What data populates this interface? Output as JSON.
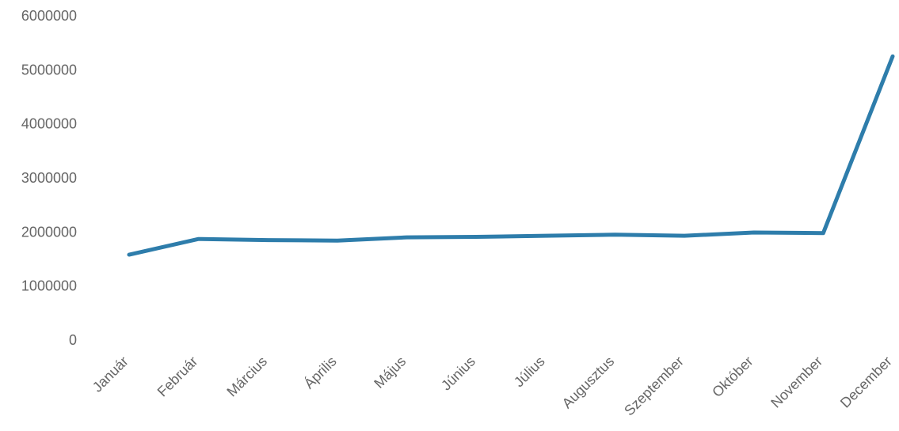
{
  "chart_data": {
    "type": "line",
    "title": "",
    "xlabel": "",
    "ylabel": "",
    "categories": [
      "Január",
      "Február",
      "Március",
      "Április",
      "Május",
      "Június",
      "Július",
      "Augusztus",
      "Szeptember",
      "Október",
      "November",
      "December"
    ],
    "series": [
      {
        "values": [
          1580000,
          1870000,
          1850000,
          1840000,
          1900000,
          1910000,
          1930000,
          1950000,
          1930000,
          1990000,
          1980000,
          5250000
        ]
      }
    ],
    "ylim": [
      0,
      6000000
    ],
    "yticks": [
      0,
      1000000,
      2000000,
      3000000,
      4000000,
      5000000,
      6000000
    ],
    "ytick_labels": [
      "0",
      "1000000",
      "2000000",
      "3000000",
      "4000000",
      "5000000",
      "6000000"
    ],
    "grid": false,
    "legend": "none",
    "colors": {
      "line": "#2e7dab",
      "tick_text": "#666666",
      "background": "#ffffff"
    }
  }
}
